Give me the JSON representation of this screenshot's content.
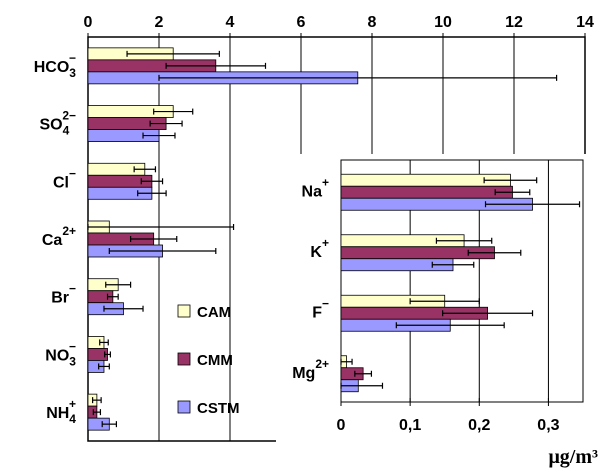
{
  "chart_data": [
    {
      "type": "bar",
      "orientation": "horizontal",
      "categories": [
        {
          "base": "HCO",
          "sub": "3",
          "sup": "−"
        },
        {
          "base": "SO",
          "sub": "4",
          "sup": "2−"
        },
        {
          "base": "Cl",
          "sub": "",
          "sup": "−"
        },
        {
          "base": "Ca",
          "sub": "",
          "sup": "2+"
        },
        {
          "base": "Br",
          "sub": "",
          "sup": "−"
        },
        {
          "base": "NO",
          "sub": "3",
          "sup": "−"
        },
        {
          "base": "NH",
          "sub": "4",
          "sup": "+"
        }
      ],
      "series": [
        {
          "name": "CAM",
          "color": "#ffffcc",
          "values": [
            2.4,
            2.4,
            1.6,
            0.6,
            0.85,
            0.45,
            0.25
          ],
          "errors": [
            1.3,
            0.55,
            0.3,
            3.5,
            0.35,
            0.12,
            0.12
          ]
        },
        {
          "name": "CMM",
          "color": "#993366",
          "values": [
            3.6,
            2.2,
            1.8,
            1.85,
            0.7,
            0.55,
            0.25
          ],
          "errors": [
            1.4,
            0.45,
            0.3,
            0.65,
            0.15,
            0.08,
            0.1
          ]
        },
        {
          "name": "CSTM",
          "color": "#9999ff",
          "values": [
            7.6,
            2.0,
            1.8,
            2.1,
            1.0,
            0.45,
            0.6
          ],
          "errors": [
            5.6,
            0.45,
            0.4,
            1.5,
            0.55,
            0.15,
            0.2
          ]
        }
      ],
      "xlim": [
        0,
        14
      ],
      "xticks": [
        "0",
        "2",
        "4",
        "6",
        "8",
        "10",
        "12",
        "14"
      ],
      "xaxis_position": "top",
      "grid": true
    },
    {
      "type": "bar",
      "orientation": "horizontal",
      "categories": [
        {
          "base": "Na",
          "sub": "",
          "sup": "+"
        },
        {
          "base": "K",
          "sub": "",
          "sup": "+"
        },
        {
          "base": "F",
          "sub": "",
          "sup": "−"
        },
        {
          "base": "Mg",
          "sub": "",
          "sup": "2+"
        }
      ],
      "series": [
        {
          "name": "CAM",
          "color": "#ffffcc",
          "values": [
            0.245,
            0.178,
            0.15,
            0.008
          ],
          "errors": [
            0.038,
            0.04,
            0.05,
            0.008
          ]
        },
        {
          "name": "CMM",
          "color": "#993366",
          "values": [
            0.248,
            0.222,
            0.212,
            0.032
          ],
          "errors": [
            0.025,
            0.038,
            0.065,
            0.012
          ]
        },
        {
          "name": "CSTM",
          "color": "#9999ff",
          "values": [
            0.277,
            0.162,
            0.158,
            0.025
          ],
          "errors": [
            0.068,
            0.03,
            0.078,
            0.035
          ]
        }
      ],
      "xlim": [
        0,
        0.35
      ],
      "xticks": [
        "0",
        "0,1",
        "0,2",
        "0,3"
      ],
      "xaxis_position": "bottom",
      "grid": true
    }
  ],
  "legend": [
    {
      "label": "CAM",
      "color": "#ffffcc"
    },
    {
      "label": "CMM",
      "color": "#993366"
    },
    {
      "label": "CSTM",
      "color": "#9999ff"
    }
  ],
  "unit_label": "μg/m³"
}
